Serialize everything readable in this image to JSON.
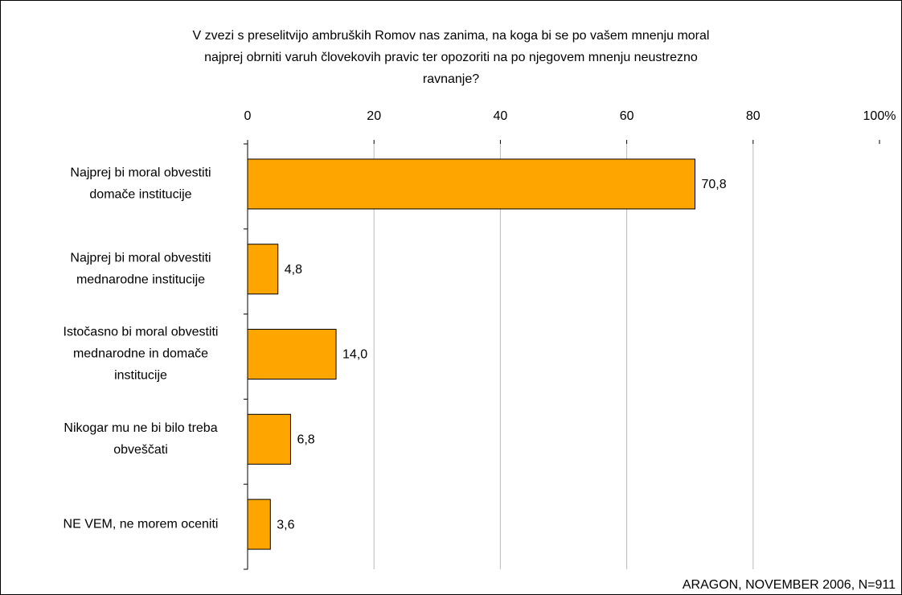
{
  "chart_data": {
    "type": "bar",
    "orientation": "horizontal",
    "title": [
      "V zvezi s preselitvijo ambruških Romov nas zanima, na koga bi se po vašem mnenju moral",
      "najprej obrniti varuh človekovih pravic ter opozoriti na po njegovem mnenju neustrezno",
      "ravnanje?"
    ],
    "categories": [
      [
        "Najprej bi moral obvestiti",
        "domače institucije"
      ],
      [
        "Najprej bi moral obvestiti",
        "mednarodne institucije"
      ],
      [
        "Istočasno bi moral obvestiti",
        "mednarodne in domače",
        "institucije"
      ],
      [
        "Nikogar mu ne bi bilo treba",
        "obveščati"
      ],
      [
        "NE VEM, ne morem oceniti"
      ]
    ],
    "values": [
      70.8,
      4.8,
      14.0,
      6.8,
      3.6
    ],
    "value_labels": [
      "70,8",
      "4,8",
      "14,0",
      "6,8",
      "3,6"
    ],
    "color": "#ffa500",
    "xlim": [
      0,
      100
    ],
    "xticks": [
      0,
      20,
      40,
      60,
      80,
      {
        "value": 100,
        "label": "100%"
      }
    ],
    "grid": true,
    "source": "ARAGON, NOVEMBER 2006, N=911"
  }
}
